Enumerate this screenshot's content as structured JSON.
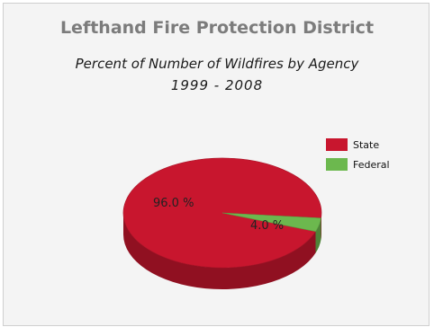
{
  "chart_data": {
    "type": "pie",
    "title": "Lefthand Fire Protection District",
    "subtitle": "Percent of Number of Wildfires by Agency",
    "subtitle2": "1999 - 2008",
    "slices": [
      {
        "label": "State",
        "value": 96.0,
        "value_label": "96.0 %",
        "color": "#c8162e"
      },
      {
        "label": "Federal",
        "value": 4.0,
        "value_label": "4.0 %",
        "color": "#6cb84e"
      }
    ],
    "legend_position": "right"
  }
}
